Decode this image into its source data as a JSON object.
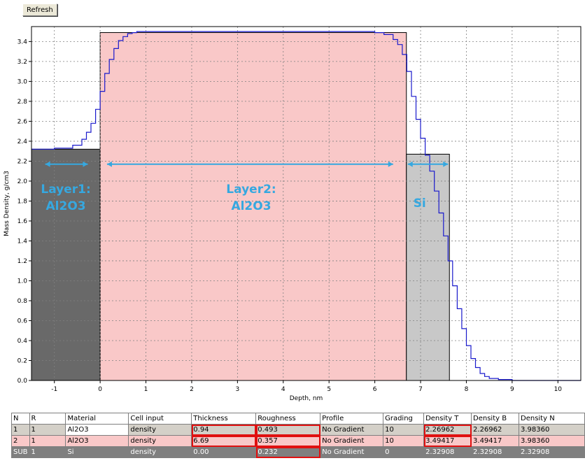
{
  "toolbar": {
    "refresh_label": "Refresh"
  },
  "chart_data": {
    "type": "area",
    "xlabel": "Depth, nm",
    "ylabel": "Mass Density, g/cm3",
    "xlim": [
      -1.5,
      10.5
    ],
    "ylim": [
      0.0,
      3.55
    ],
    "xticks": [
      -1,
      0,
      1,
      2,
      3,
      4,
      5,
      6,
      7,
      8,
      9,
      10
    ],
    "yticks": [
      0.0,
      0.2,
      0.4,
      0.6,
      0.8,
      1.0,
      1.2,
      1.4,
      1.6,
      1.8,
      2.0,
      2.2,
      2.4,
      2.6,
      2.8,
      3.0,
      3.2,
      3.4
    ],
    "grid": true,
    "layers": [
      {
        "x0": -1.5,
        "x1": 0.0,
        "density": 2.32,
        "color": "#696969"
      },
      {
        "x0": 0.0,
        "x1": 6.69,
        "density": 3.49,
        "color": "#f9c8c8"
      },
      {
        "x0": 6.69,
        "x1": 7.63,
        "density": 2.27,
        "color": "#c8c8c8"
      }
    ],
    "series": [
      {
        "x": [
          -1.5,
          -1.0,
          -0.6,
          -0.4,
          -0.3,
          -0.2,
          -0.1,
          0.0,
          0.1,
          0.2,
          0.3,
          0.4,
          0.5,
          0.6,
          0.7,
          0.8,
          1.0,
          1.2,
          5.8,
          6.0,
          6.2,
          6.4,
          6.5,
          6.6,
          6.7,
          6.8,
          6.9,
          7.0,
          7.1,
          7.2,
          7.3,
          7.4,
          7.5,
          7.6,
          7.7,
          7.8,
          7.9,
          8.0,
          8.1,
          8.2,
          8.3,
          8.4,
          8.5,
          8.7,
          9.0,
          10.5
        ],
        "y": [
          2.32,
          2.33,
          2.36,
          2.42,
          2.49,
          2.58,
          2.72,
          2.9,
          3.08,
          3.22,
          3.33,
          3.41,
          3.45,
          3.48,
          3.49,
          3.5,
          3.5,
          3.5,
          3.5,
          3.49,
          3.47,
          3.42,
          3.37,
          3.27,
          3.1,
          2.85,
          2.62,
          2.43,
          2.26,
          2.1,
          1.9,
          1.68,
          1.45,
          1.2,
          0.95,
          0.72,
          0.52,
          0.35,
          0.22,
          0.13,
          0.07,
          0.04,
          0.02,
          0.01,
          0.0,
          0.0
        ],
        "color": "#1a1acc"
      }
    ],
    "annotations": [
      {
        "text_lines": [
          "Layer1:",
          "Al2O3"
        ],
        "x": -0.75,
        "y": 1.88
      },
      {
        "text_lines": [
          "Layer2:",
          "Al2O3"
        ],
        "x": 3.3,
        "y": 1.88
      },
      {
        "text_lines": [
          "Si"
        ],
        "x": 6.98,
        "y": 1.74
      }
    ],
    "arrows": [
      {
        "x0": -1.2,
        "x1": -0.27,
        "y": 2.17
      },
      {
        "x0": 0.15,
        "x1": 6.4,
        "y": 2.17
      },
      {
        "x0": 6.72,
        "x1": 7.6,
        "y": 2.17
      }
    ]
  },
  "table": {
    "headers": [
      "N",
      "R",
      "Material",
      "Cell input",
      "Thickness",
      "Roughness",
      "Profile",
      "Grading",
      "Density T",
      "Density B",
      "Density N"
    ],
    "rows": [
      [
        "1",
        "1",
        "Al2O3",
        "density",
        "0.94",
        "0.493",
        "No Gradient",
        "10",
        "2.26962",
        "2.26962",
        "3.98360"
      ],
      [
        "2",
        "1",
        "Al2O3",
        "density",
        "6.69",
        "0.357",
        "No Gradient",
        "10",
        "3.49417",
        "3.49417",
        "3.98360"
      ],
      [
        "SUB",
        "1",
        "Si",
        "density",
        "0.00",
        "0.232",
        "No Gradient",
        "0",
        "2.32908",
        "2.32908",
        "2.32908"
      ]
    ]
  }
}
